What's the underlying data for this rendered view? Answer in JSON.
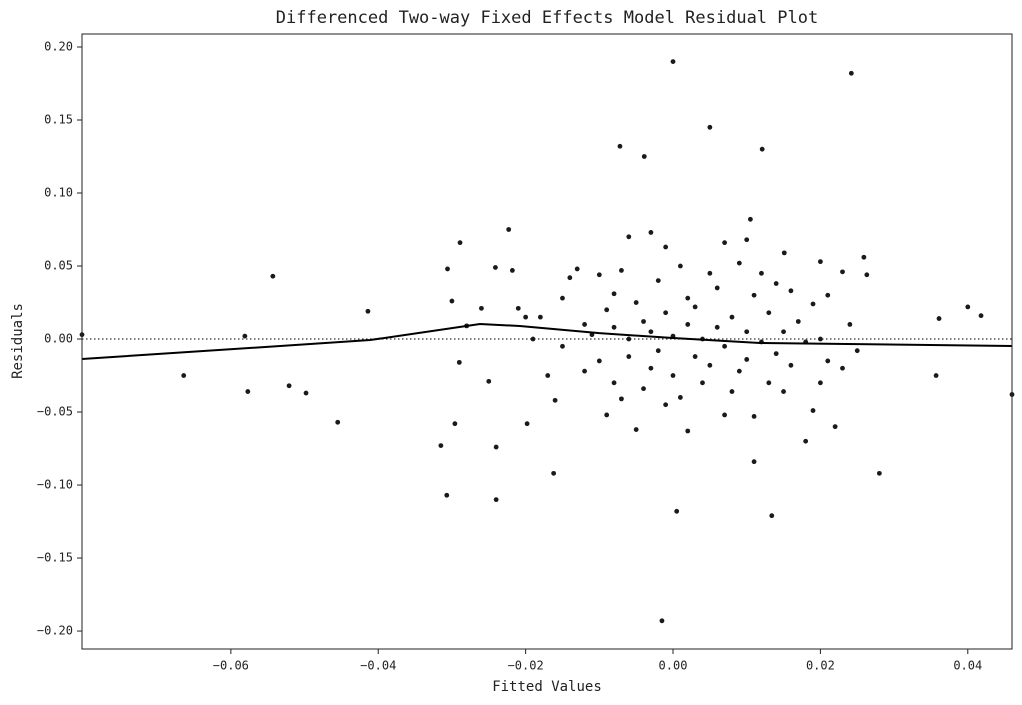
{
  "chart_data": {
    "type": "scatter",
    "title": "Differenced Two-way Fixed Effects Model Residual Plot",
    "x_label": "Fitted Values",
    "y_label": "Residuals",
    "xlim": [
      -0.0802,
      0.046
    ],
    "ylim": [
      -0.2123,
      0.2089
    ],
    "xticks": [
      {
        "value": -0.06,
        "label": "−0.06"
      },
      {
        "value": -0.04,
        "label": "−0.04"
      },
      {
        "value": -0.02,
        "label": "−0.02"
      },
      {
        "value": 0,
        "label": "0.00"
      },
      {
        "value": 0.02,
        "label": "0.02"
      },
      {
        "value": 0.04,
        "label": "0.04"
      }
    ],
    "yticks": [
      {
        "value": 0.2,
        "label": "0.20"
      },
      {
        "value": 0.15,
        "label": "0.15"
      },
      {
        "value": 0.1,
        "label": "0.10"
      },
      {
        "value": 0.05,
        "label": "0.05"
      },
      {
        "value": 0,
        "label": "0.00"
      },
      {
        "value": -0.05,
        "label": "−0.05"
      },
      {
        "value": -0.1,
        "label": "−0.10"
      },
      {
        "value": -0.15,
        "label": "−0.15"
      },
      {
        "value": -0.2,
        "label": "−0.20"
      }
    ],
    "series": [
      {
        "type": "scatter",
        "color": "#1a1a1a",
        "x": [
          0.0,
          0.0242,
          0.005,
          -0.0072,
          0.0121,
          -0.0039,
          0.0105,
          -0.0223,
          -0.0289,
          -0.0543,
          -0.0414,
          -0.0581,
          -0.0802,
          -0.0664,
          -0.0577,
          -0.0521,
          -0.0498,
          -0.0455,
          -0.0315,
          -0.0296,
          -0.0307,
          -0.024,
          -0.024,
          -0.0198,
          -0.0162,
          -0.0015,
          0.0005,
          0.0134,
          0.011,
          0.028,
          0.04,
          0.0418,
          0.0361,
          0.0357,
          0.046,
          0.0259,
          0.0263,
          -0.0306,
          -0.0241,
          -0.0218,
          0.0151,
          0.02,
          -0.018,
          -0.015,
          -0.015,
          -0.014,
          -0.013,
          -0.012,
          -0.012,
          -0.011,
          -0.01,
          -0.01,
          -0.009,
          -0.009,
          -0.008,
          -0.008,
          -0.008,
          -0.007,
          -0.007,
          -0.006,
          -0.006,
          -0.006,
          -0.005,
          -0.005,
          -0.004,
          -0.004,
          -0.003,
          -0.003,
          -0.003,
          -0.002,
          -0.002,
          -0.001,
          -0.001,
          -0.001,
          0.0,
          0.0,
          0.001,
          0.001,
          0.002,
          0.002,
          0.002,
          0.003,
          0.003,
          0.004,
          0.004,
          0.005,
          0.005,
          0.006,
          0.006,
          0.007,
          0.007,
          0.007,
          0.008,
          0.008,
          0.009,
          0.009,
          0.01,
          0.01,
          0.01,
          0.011,
          0.011,
          0.012,
          0.012,
          0.013,
          0.013,
          0.014,
          0.014,
          0.015,
          0.015,
          0.016,
          0.016,
          0.017,
          0.018,
          0.018,
          0.019,
          0.019,
          0.02,
          0.02,
          0.021,
          0.021,
          0.022,
          0.023,
          0.023,
          0.024,
          0.025,
          -0.016,
          -0.017,
          -0.019,
          -0.02,
          -0.021,
          -0.025,
          -0.026,
          -0.028,
          -0.03,
          -0.029
        ],
        "values": [
          0.19,
          0.182,
          0.145,
          0.132,
          0.13,
          0.125,
          0.082,
          0.075,
          0.066,
          0.043,
          0.019,
          0.002,
          0.003,
          -0.025,
          -0.036,
          -0.032,
          -0.037,
          -0.057,
          -0.073,
          -0.058,
          -0.107,
          -0.11,
          -0.074,
          -0.058,
          -0.092,
          -0.193,
          -0.118,
          -0.121,
          -0.084,
          -0.092,
          0.022,
          0.016,
          0.014,
          -0.025,
          -0.038,
          0.056,
          0.044,
          0.048,
          0.049,
          0.047,
          0.059,
          0.053,
          0.015,
          0.028,
          -0.005,
          0.042,
          0.048,
          0.01,
          -0.022,
          0.003,
          0.044,
          -0.015,
          0.02,
          -0.052,
          0.008,
          0.031,
          -0.03,
          0.047,
          -0.041,
          0.07,
          0.0,
          -0.012,
          0.025,
          -0.062,
          0.012,
          -0.034,
          0.073,
          0.005,
          -0.02,
          0.04,
          -0.008,
          0.063,
          0.018,
          -0.045,
          0.002,
          -0.025,
          0.05,
          -0.04,
          0.01,
          -0.063,
          0.028,
          -0.012,
          0.022,
          0.0,
          -0.03,
          0.045,
          -0.018,
          0.008,
          0.035,
          -0.052,
          0.066,
          -0.005,
          0.015,
          -0.036,
          0.052,
          -0.022,
          0.005,
          0.068,
          -0.014,
          0.03,
          -0.053,
          -0.002,
          0.045,
          -0.03,
          0.018,
          -0.01,
          0.038,
          0.005,
          -0.036,
          0.033,
          -0.018,
          0.012,
          -0.07,
          -0.002,
          0.024,
          -0.049,
          0.0,
          -0.03,
          0.03,
          -0.015,
          -0.06,
          0.046,
          -0.02,
          0.01,
          -0.008,
          -0.042,
          -0.025,
          0.0,
          0.015,
          0.021,
          -0.029,
          0.021,
          0.009,
          0.026,
          -0.016
        ]
      },
      {
        "type": "line",
        "color": "#000000",
        "x": [
          -0.0802,
          -0.0411,
          -0.0262,
          -0.0208,
          -0.01,
          0.0,
          0.0118,
          0.046
        ],
        "values": [
          -0.0137,
          -0.0007,
          0.0103,
          0.0089,
          0.004,
          0.0007,
          -0.0027,
          -0.0048
        ]
      }
    ]
  }
}
